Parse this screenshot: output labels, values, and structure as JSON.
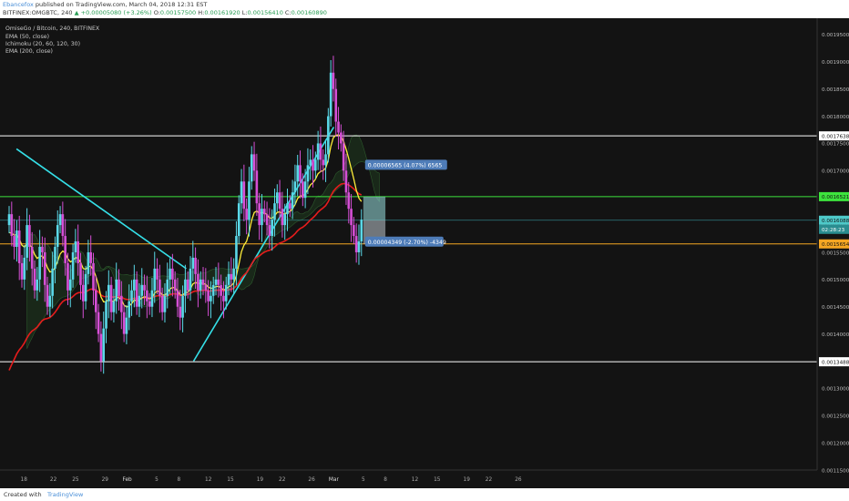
{
  "header": {
    "author": "Ebancefox",
    "published": "published on TradingView.com, March 04, 2018 12:31 EST",
    "symbol": "BITFINEX:OMGBTC, 240",
    "change": "▲ +0.00005080 (+3.26%)",
    "o_label": "O:",
    "o_value": "0.00157500",
    "h_label": "H:",
    "h_value": "0.00161920",
    "l_label": "L:",
    "l_value": "0.00156410",
    "c_label": "C:",
    "c_value": "0.00160890"
  },
  "legend": {
    "series": "OmiseGo / Bitcoin, 240, BITFINEX",
    "ema50": "EMA (50, close)",
    "ichimoku": "Ichimoku (20, 60, 120, 30)",
    "ema200": "EMA (200, close)"
  },
  "footer": {
    "created": "Created with",
    "brand": "TradingView"
  },
  "colors": {
    "background": "#141414",
    "bull": "#5ad8e8",
    "bear": "#d64fd6",
    "ema50": "#ffee3a",
    "ema200": "#e61c1c",
    "trendline": "#35e0e8",
    "target": "#3de33d",
    "stop": "#f5a623",
    "level": "#ffffff"
  },
  "chart_data": {
    "type": "candlestick",
    "title": "",
    "ylim": [
      0.00115,
      0.00198
    ],
    "y_ticks": [
      "0.00195000",
      "0.00190000",
      "0.00185000",
      "0.00180000",
      "0.00175000",
      "0.00170000",
      "0.00165000",
      "0.00160000",
      "0.00155000",
      "0.00150000",
      "0.00145000",
      "0.00140000",
      "0.00135000",
      "0.00130000",
      "0.00125000",
      "0.00120000",
      "0.00115000"
    ],
    "x_ticks": [
      "18",
      "22",
      "25",
      "29",
      "Feb",
      "5",
      "8",
      "12",
      "15",
      "19",
      "22",
      "26",
      "Mar",
      "5",
      "8",
      "12",
      "15",
      "19",
      "22",
      "26"
    ],
    "price_labels": {
      "resistance": "0.00176382",
      "target": "0.00165219",
      "current": "0.00160889",
      "countdown": "02:28:23",
      "stop": "0.00156540",
      "support": "0.00134889"
    },
    "levels": {
      "resistance": 0.00176382,
      "support": 0.00134889,
      "target": 0.00165219,
      "stop": 0.0015654,
      "current": 0.00160889
    },
    "trendlines": [
      {
        "from": [
          "2018-01-17",
          0.00174
        ],
        "to": [
          "2018-02-09",
          0.00152
        ]
      },
      {
        "from": [
          "2018-02-10",
          0.00135
        ],
        "to": [
          "2018-03-01",
          0.00178
        ]
      }
    ],
    "position": {
      "profit_label": "0.00006565 (4.07%) 6565",
      "loss_label": "0.00004349 (-2.70%) -4349"
    },
    "close": [
      0.00162,
      0.00158,
      0.00156,
      0.00159,
      0.00153,
      0.0015,
      0.00154,
      0.0016,
      0.00156,
      0.00152,
      0.00148,
      0.0015,
      0.00156,
      0.00155,
      0.00149,
      0.00145,
      0.00147,
      0.00152,
      0.00156,
      0.0016,
      0.00162,
      0.00158,
      0.00153,
      0.00148,
      0.0015,
      0.00155,
      0.00157,
      0.00153,
      0.00149,
      0.00146,
      0.00151,
      0.00155,
      0.00153,
      0.00148,
      0.00144,
      0.0014,
      0.00135,
      0.00141,
      0.00146,
      0.00149,
      0.00144,
      0.00146,
      0.0015,
      0.00147,
      0.00144,
      0.0014,
      0.00143,
      0.00146,
      0.00148,
      0.0015,
      0.00145,
      0.00147,
      0.00149,
      0.00148,
      0.00146,
      0.00145,
      0.00148,
      0.00152,
      0.0015,
      0.00147,
      0.00144,
      0.00147,
      0.0015,
      0.00152,
      0.0015,
      0.00148,
      0.00145,
      0.00143,
      0.00147,
      0.0015,
      0.00148,
      0.00152,
      0.00154,
      0.00151,
      0.00148,
      0.0015,
      0.00149,
      0.00148,
      0.00146,
      0.00147,
      0.00149,
      0.0015,
      0.00149,
      0.00147,
      0.00146,
      0.00149,
      0.00151,
      0.0015,
      0.00152,
      0.00158,
      0.00164,
      0.00168,
      0.00163,
      0.00161,
      0.00168,
      0.00173,
      0.0017,
      0.00164,
      0.0016,
      0.00163,
      0.00162,
      0.0016,
      0.00158,
      0.00161,
      0.00164,
      0.00166,
      0.00163,
      0.0016,
      0.00162,
      0.00164,
      0.00163,
      0.00166,
      0.00168,
      0.00171,
      0.00168,
      0.00165,
      0.00168,
      0.00171,
      0.00172,
      0.0017,
      0.00172,
      0.00175,
      0.00172,
      0.00171,
      0.00173,
      0.0018,
      0.00188,
      0.00185,
      0.00179,
      0.00177,
      0.00175,
      0.0017,
      0.00166,
      0.00163,
      0.0016,
      0.00158,
      0.00155,
      0.00157,
      0.00161
    ]
  }
}
